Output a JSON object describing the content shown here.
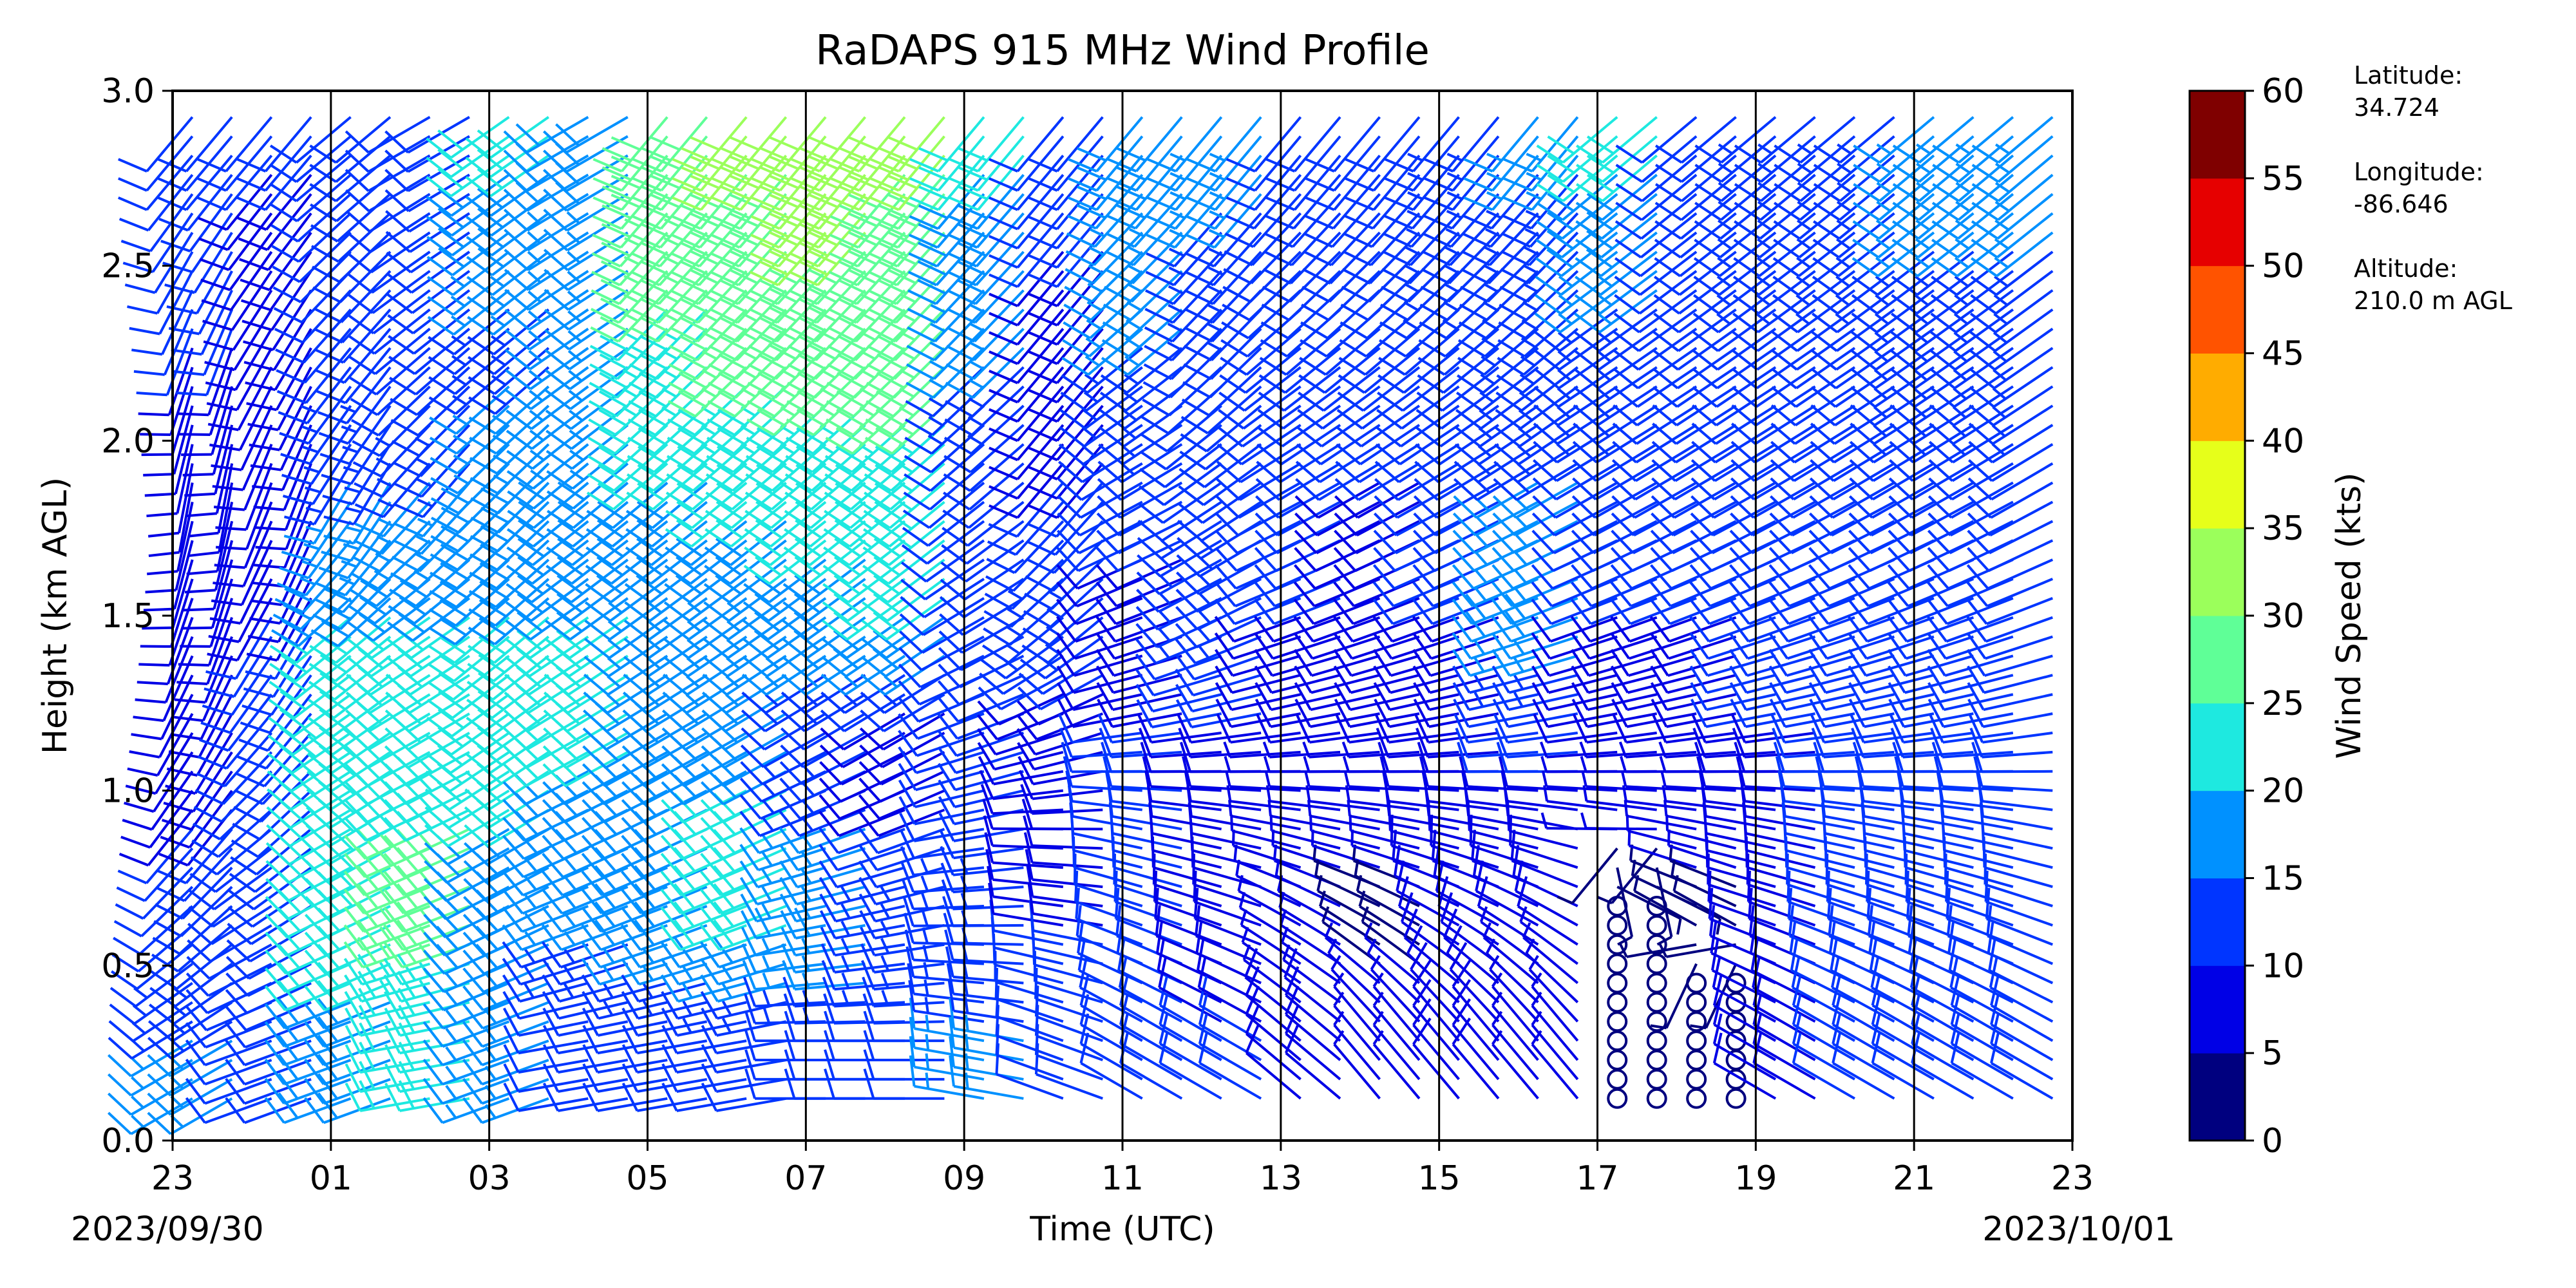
{
  "chart_data": {
    "type": "wind_barb_profile",
    "title": "RaDAPS 915 MHz Wind Profile",
    "xlabel": "Time (UTC)",
    "ylabel": "Height (km AGL)",
    "date_start": "2023/09/30",
    "date_end": "2023/10/01",
    "x_tick_labels": [
      "23",
      "01",
      "03",
      "05",
      "07",
      "09",
      "11",
      "13",
      "15",
      "17",
      "19",
      "21",
      "23"
    ],
    "y_tick_labels": [
      "0.0",
      "0.5",
      "1.0",
      "1.5",
      "2.0",
      "2.5",
      "3.0"
    ],
    "ylim": [
      0.0,
      3.0
    ],
    "grid": "vertical lines at each labeled hour",
    "colorbar": {
      "label": "Wind Speed (kts)",
      "tick_labels": [
        "0",
        "5",
        "10",
        "15",
        "20",
        "25",
        "30",
        "35",
        "40",
        "45",
        "50",
        "55",
        "60"
      ],
      "colors": [
        "#00007f",
        "#0000e6",
        "#0035ff",
        "#0091ff",
        "#1ee9e0",
        "#5fff97",
        "#9bff5b",
        "#e6ff1a",
        "#ffac00",
        "#ff5300",
        "#e60000",
        "#7f0000"
      ]
    },
    "annotations": [
      {
        "label": "Latitude:",
        "value": "34.724"
      },
      {
        "label": "Longitude:",
        "value": "-86.646"
      },
      {
        "label": "Altitude:",
        "value": "210.0 m AGL"
      }
    ],
    "profiles": [
      {
        "time": "23:00",
        "speed_kts": [
          15,
          12,
          10,
          9,
          8,
          8,
          10,
          12
        ],
        "direction_deg": [
          240,
          230,
          220,
          210,
          200,
          190,
          200,
          220
        ]
      },
      {
        "time": "00:00",
        "speed_kts": [
          10,
          10,
          12,
          12,
          10,
          9,
          9,
          10
        ],
        "direction_deg": [
          250,
          240,
          230,
          220,
          210,
          200,
          210,
          220
        ]
      },
      {
        "time": "01:00",
        "speed_kts": [
          18,
          22,
          24,
          23,
          20,
          15,
          12,
          12
        ],
        "direction_deg": [
          250,
          245,
          240,
          235,
          230,
          210,
          220,
          230
        ]
      },
      {
        "time": "02:00",
        "speed_kts": [
          20,
          27,
          25,
          22,
          20,
          15,
          10,
          10
        ],
        "direction_deg": [
          260,
          250,
          245,
          240,
          235,
          220,
          230,
          240
        ]
      },
      {
        "time": "03:00",
        "speed_kts": [
          15,
          18,
          20,
          22,
          20,
          18,
          14,
          20
        ],
        "direction_deg": [
          250,
          245,
          240,
          235,
          230,
          225,
          230,
          235
        ]
      },
      {
        "time": "04:00",
        "speed_kts": [
          10,
          15,
          18,
          21,
          20,
          18,
          15,
          18
        ],
        "direction_deg": [
          260,
          250,
          245,
          240,
          235,
          230,
          235,
          240
        ]
      },
      {
        "time": "05:00",
        "speed_kts": [
          10,
          18,
          20,
          18,
          16,
          20,
          24,
          28
        ],
        "direction_deg": [
          260,
          250,
          245,
          240,
          235,
          230,
          225,
          220
        ]
      },
      {
        "time": "06:00",
        "speed_kts": [
          12,
          20,
          22,
          18,
          15,
          22,
          26,
          30
        ],
        "direction_deg": [
          260,
          250,
          245,
          240,
          235,
          230,
          225,
          220
        ]
      },
      {
        "time": "07:00",
        "speed_kts": [
          12,
          18,
          15,
          12,
          18,
          22,
          28,
          32
        ],
        "direction_deg": [
          270,
          260,
          250,
          240,
          235,
          230,
          225,
          220
        ]
      },
      {
        "time": "08:00",
        "speed_kts": [
          12,
          15,
          10,
          8,
          20,
          24,
          26,
          30
        ],
        "direction_deg": [
          270,
          260,
          250,
          240,
          235,
          230,
          225,
          220
        ]
      },
      {
        "time": "09:00",
        "speed_kts": [
          15,
          14,
          12,
          10,
          12,
          10,
          16,
          20
        ],
        "direction_deg": [
          280,
          270,
          260,
          250,
          240,
          230,
          225,
          220
        ]
      },
      {
        "time": "10:00",
        "speed_kts": [
          12,
          10,
          8,
          8,
          15,
          10,
          8,
          12
        ],
        "direction_deg": [
          290,
          280,
          270,
          250,
          230,
          220,
          220,
          220
        ]
      },
      {
        "time": "11:00",
        "speed_kts": [
          12,
          10,
          10,
          10,
          8,
          12,
          15,
          18
        ],
        "direction_deg": [
          300,
          290,
          280,
          260,
          250,
          240,
          230,
          220
        ]
      },
      {
        "time": "12:00",
        "speed_kts": [
          10,
          8,
          8,
          10,
          14,
          12,
          12,
          16
        ],
        "direction_deg": [
          300,
          290,
          280,
          260,
          245,
          235,
          225,
          220
        ]
      },
      {
        "time": "13:00",
        "speed_kts": [
          8,
          6,
          6,
          8,
          10,
          10,
          10,
          12
        ],
        "direction_deg": [
          310,
          300,
          280,
          260,
          250,
          240,
          230,
          220
        ]
      },
      {
        "time": "14:00",
        "speed_kts": [
          6,
          4,
          6,
          8,
          9,
          10,
          10,
          10
        ],
        "direction_deg": [
          320,
          300,
          280,
          260,
          250,
          240,
          230,
          220
        ]
      },
      {
        "time": "15:00",
        "speed_kts": [
          8,
          8,
          8,
          8,
          10,
          12,
          12,
          14
        ],
        "direction_deg": [
          320,
          300,
          280,
          260,
          250,
          240,
          230,
          220
        ]
      },
      {
        "time": "16:00",
        "speed_kts": [
          6,
          8,
          8,
          12,
          18,
          15,
          14,
          15
        ],
        "direction_deg": [
          320,
          300,
          280,
          260,
          250,
          240,
          230,
          220
        ]
      },
      {
        "time": "17:00",
        "speed_kts": [
          0,
          0,
          6,
          8,
          10,
          12,
          14,
          20
        ],
        "direction_deg": [
          0,
          0,
          280,
          260,
          250,
          240,
          235,
          230
        ]
      },
      {
        "time": "18:00",
        "speed_kts": [
          0,
          4,
          6,
          8,
          10,
          10,
          10,
          12
        ],
        "direction_deg": [
          0,
          300,
          280,
          260,
          250,
          240,
          235,
          230
        ]
      },
      {
        "time": "19:00",
        "speed_kts": [
          8,
          8,
          8,
          10,
          10,
          10,
          12,
          14
        ],
        "direction_deg": [
          300,
          290,
          280,
          260,
          250,
          240,
          235,
          230
        ]
      },
      {
        "time": "20:00",
        "speed_kts": [
          10,
          10,
          10,
          10,
          10,
          10,
          12,
          14
        ],
        "direction_deg": [
          300,
          290,
          280,
          260,
          250,
          240,
          235,
          230
        ]
      },
      {
        "time": "21:00",
        "speed_kts": [
          10,
          10,
          10,
          10,
          10,
          12,
          14,
          16
        ],
        "direction_deg": [
          300,
          290,
          280,
          260,
          250,
          240,
          235,
          230
        ]
      },
      {
        "time": "22:00",
        "speed_kts": [
          10,
          12,
          12,
          12,
          12,
          12,
          14,
          16
        ],
        "direction_deg": [
          300,
          290,
          280,
          260,
          250,
          240,
          235,
          230
        ]
      }
    ],
    "profile_heights_km": [
      0.3,
      0.6,
      0.9,
      1.2,
      1.5,
      1.9,
      2.3,
      2.8
    ]
  }
}
